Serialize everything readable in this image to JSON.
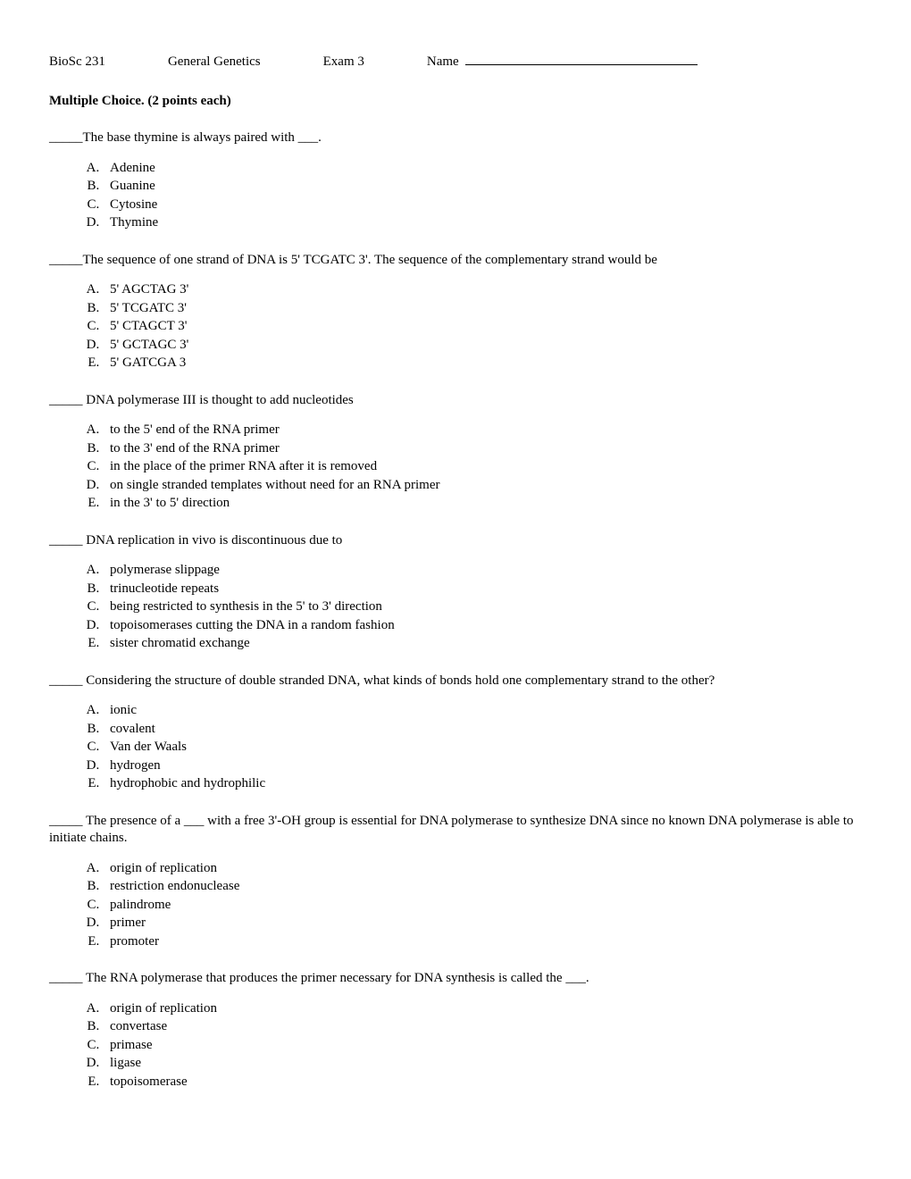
{
  "header": {
    "course": "BioSc 231",
    "title": "General Genetics",
    "exam": "Exam 3",
    "name_label": "Name"
  },
  "section_title": "Multiple Choice.   (2 points each)",
  "questions": [
    {
      "text_pre": "_____The base thymine is always paired with ___.",
      "options": [
        "Adenine",
        "Guanine",
        "Cytosine",
        "Thymine"
      ]
    },
    {
      "text_pre": "_____The sequence of one strand of DNA is 5' TCGATC 3'. The sequence of the complementary strand would be",
      "options": [
        "5' AGCTAG 3'",
        "5' TCGATC 3'",
        "5' CTAGCT 3'",
        "5' GCTAGC 3'",
        "5' GATCGA 3"
      ]
    },
    {
      "text_pre": "_____ DNA polymerase III is thought to add nucleotides",
      "options": [
        "to the 5' end of the RNA primer",
        "to the 3' end of the RNA primer",
        "in the place of the primer RNA after it is removed",
        "on single stranded templates without need for an RNA primer",
        "in the 3' to 5' direction"
      ]
    },
    {
      "text_pre": "_____ DNA replication in vivo is discontinuous due to",
      "options": [
        "polymerase slippage",
        "trinucleotide repeats",
        "being restricted to synthesis in the 5' to 3' direction",
        "topoisomerases cutting the DNA in a random fashion",
        "sister chromatid exchange"
      ]
    },
    {
      "text_pre": "_____ Considering the structure of double stranded DNA, what kinds of bonds hold one complementary strand to the other?",
      "options": [
        "ionic",
        "covalent",
        "Van der Waals",
        "hydrogen",
        "hydrophobic and hydrophilic"
      ]
    },
    {
      "text_pre": "_____ The presence of a ___ with a free 3'-OH group is essential for DNA polymerase to synthesize DNA since no known DNA polymerase is able to initiate chains.",
      "options": [
        "origin of replication",
        "restriction endonuclease",
        "palindrome",
        "primer",
        "promoter"
      ]
    },
    {
      "text_pre": "_____ The RNA polymerase that produces the primer necessary for DNA synthesis is called the ___.",
      "options": [
        "origin of replication",
        "convertase",
        "primase",
        "ligase",
        "topoisomerase"
      ]
    }
  ]
}
